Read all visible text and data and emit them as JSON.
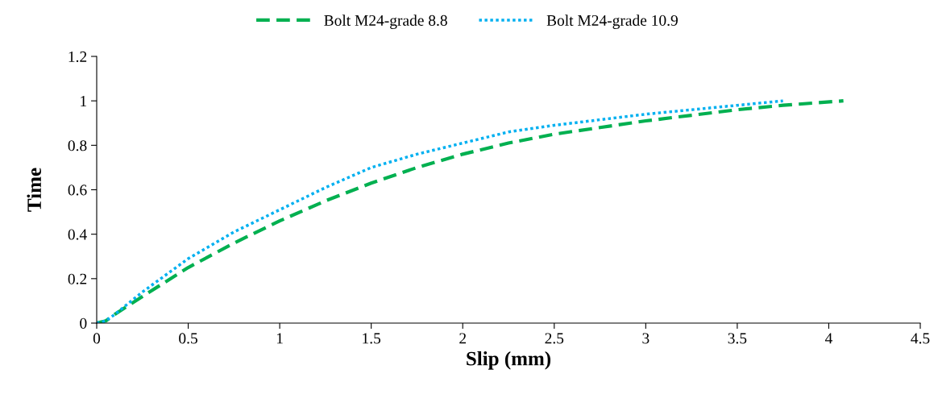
{
  "chart_data": {
    "type": "line",
    "xlabel": "Slip (mm)",
    "ylabel": "Time",
    "xlim": [
      0,
      4.5
    ],
    "xticks": [
      0,
      0.5,
      1,
      1.5,
      2,
      2.5,
      3,
      3.5,
      4,
      4.5
    ],
    "ylim": [
      0,
      1.2
    ],
    "yticks": [
      0,
      0.2,
      0.4,
      0.6,
      0.8,
      1,
      1.2
    ],
    "grid": false,
    "legend": "top",
    "marker": "none",
    "series": [
      {
        "name": "Bolt M24-grade 8.8",
        "color": "#00b050",
        "line_style": "dashed",
        "x": [
          0,
          0.05,
          0.1,
          0.25,
          0.5,
          0.75,
          1,
          1.25,
          1.5,
          1.75,
          2,
          2.25,
          2.5,
          2.75,
          3,
          3.25,
          3.5,
          3.75,
          4.08
        ],
        "values": [
          0,
          0.01,
          0.04,
          0.12,
          0.25,
          0.36,
          0.46,
          0.55,
          0.63,
          0.7,
          0.76,
          0.81,
          0.85,
          0.88,
          0.91,
          0.935,
          0.96,
          0.98,
          1.0
        ]
      },
      {
        "name": "Bolt M24-grade 10.9",
        "color": "#00b0f0",
        "line_style": "dotted",
        "x": [
          0,
          0.05,
          0.1,
          0.25,
          0.5,
          0.75,
          1,
          1.25,
          1.5,
          1.75,
          2,
          2.25,
          2.5,
          2.75,
          3,
          3.25,
          3.5,
          3.75
        ],
        "values": [
          0,
          0.01,
          0.04,
          0.14,
          0.29,
          0.41,
          0.51,
          0.61,
          0.7,
          0.76,
          0.81,
          0.86,
          0.89,
          0.915,
          0.94,
          0.96,
          0.98,
          1.0
        ]
      }
    ]
  }
}
